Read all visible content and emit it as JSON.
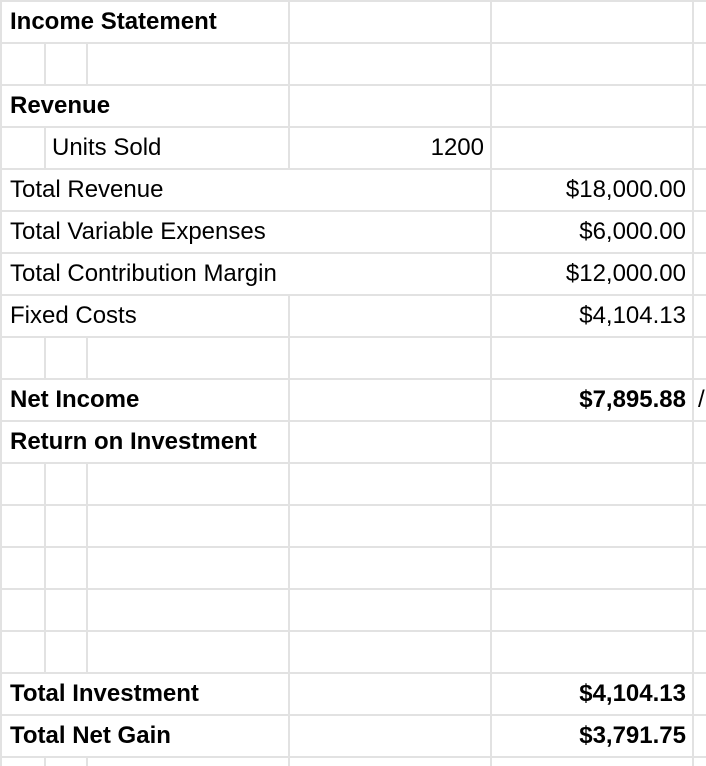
{
  "sheet": {
    "title": "Income Statement",
    "revenue_header": "Revenue",
    "units_sold": {
      "label": "Units Sold",
      "value": "1200"
    },
    "total_revenue": {
      "label": "Total Revenue",
      "value": "$18,000.00"
    },
    "total_variable_expenses": {
      "label": "Total Variable Expenses",
      "value": "$6,000.00"
    },
    "total_contribution_margin": {
      "label": "Total Contribution Margin",
      "value": "$12,000.00"
    },
    "fixed_costs": {
      "label": "Fixed Costs",
      "value": "$4,104.13"
    },
    "net_income": {
      "label": "Net Income",
      "value": "$7,895.88",
      "overflow_indicator": "/"
    },
    "roi_header": "Return on Investment",
    "total_investment": {
      "label": "Total Investment",
      "value": "$4,104.13"
    },
    "total_net_gain": {
      "label": "Total Net Gain",
      "value": "$3,791.75"
    }
  },
  "colors": {
    "gridline": "#e2e2e2",
    "text": "#000000",
    "background": "#ffffff"
  }
}
